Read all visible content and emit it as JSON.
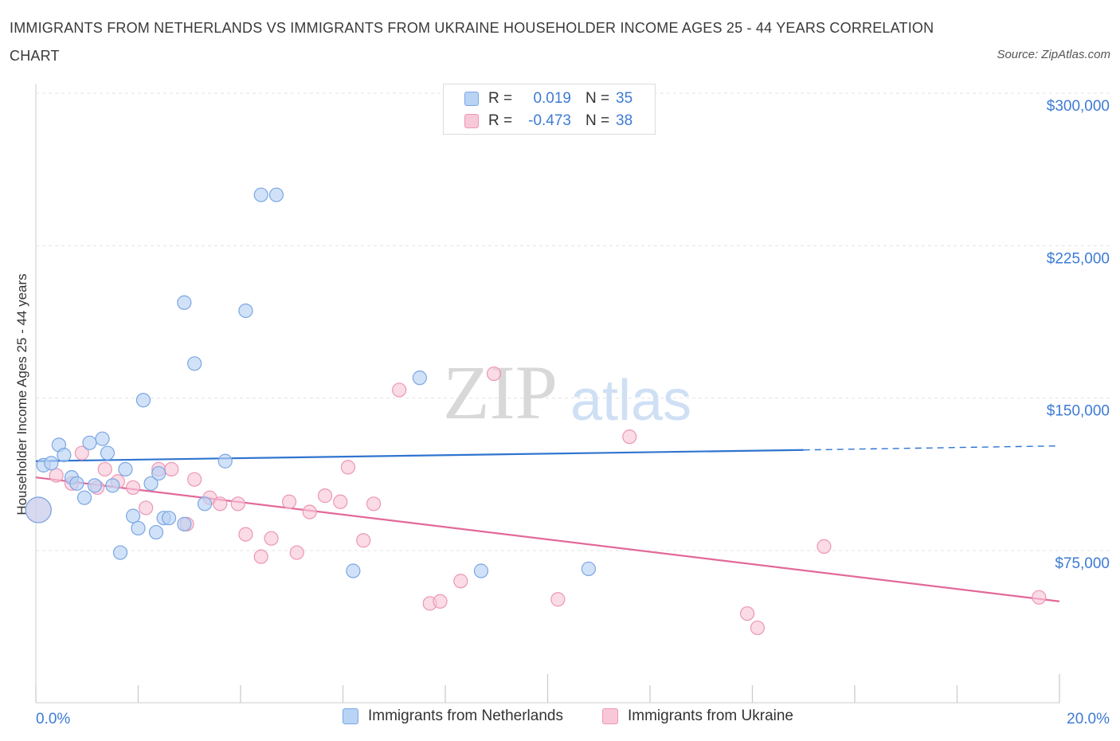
{
  "title": "IMMIGRANTS FROM NETHERLANDS VS IMMIGRANTS FROM UKRAINE HOUSEHOLDER INCOME AGES 25 - 44 YEARS CORRELATION CHART",
  "source": "Source: ZipAtlas.com",
  "watermark": {
    "zip": "ZIP",
    "atlas": "atlas"
  },
  "legend": {
    "rows": [
      {
        "r_label": "R =",
        "r_value": "0.019",
        "n_label": "N =",
        "n_value": "35"
      },
      {
        "r_label": "R =",
        "r_value": "-0.473",
        "n_label": "N =",
        "n_value": "38"
      }
    ]
  },
  "colors": {
    "blue_fill": "#b9d3f5",
    "blue_stroke": "#7aa6e3",
    "blue_line": "#2f74d0",
    "pink_fill": "#f8c8d8",
    "pink_stroke": "#ec97b3",
    "pink_line": "#e2699a",
    "axis_text": "#3d7bd4",
    "grid": "#e3e3e3"
  },
  "chart_data": {
    "type": "scatter",
    "title": "IMMIGRANTS FROM NETHERLANDS VS IMMIGRANTS FROM UKRAINE HOUSEHOLDER INCOME AGES 25 - 44 YEARS CORRELATION CHART",
    "xlabel": "",
    "ylabel": "Householder Income Ages 25 - 44 years",
    "xlim": [
      0,
      20
    ],
    "ylim": [
      0,
      300000
    ],
    "x_tick_labels": [
      "0.0%",
      "20.0%"
    ],
    "y_ticks": [
      75000,
      150000,
      225000,
      300000
    ],
    "y_tick_labels": [
      "$75,000",
      "$150,000",
      "$225,000",
      "$300,000"
    ],
    "grid": true,
    "legend_position": "top-center",
    "series": [
      {
        "name": "Immigrants from Netherlands",
        "color": "blue",
        "points": [
          [
            0.05,
            95000
          ],
          [
            0.15,
            117000
          ],
          [
            0.3,
            118000
          ],
          [
            0.45,
            127000
          ],
          [
            0.55,
            122000
          ],
          [
            0.7,
            111000
          ],
          [
            0.8,
            108000
          ],
          [
            0.95,
            101000
          ],
          [
            1.05,
            128000
          ],
          [
            1.15,
            107000
          ],
          [
            1.3,
            130000
          ],
          [
            1.4,
            123000
          ],
          [
            1.5,
            107000
          ],
          [
            1.65,
            74000
          ],
          [
            1.75,
            115000
          ],
          [
            1.9,
            92000
          ],
          [
            2.0,
            86000
          ],
          [
            2.1,
            149000
          ],
          [
            2.25,
            108000
          ],
          [
            2.35,
            84000
          ],
          [
            2.4,
            113000
          ],
          [
            2.5,
            91000
          ],
          [
            2.6,
            91000
          ],
          [
            2.9,
            88000
          ],
          [
            2.9,
            197000
          ],
          [
            3.1,
            167000
          ],
          [
            3.3,
            98000
          ],
          [
            3.7,
            119000
          ],
          [
            4.1,
            193000
          ],
          [
            4.4,
            250000
          ],
          [
            4.7,
            250000
          ],
          [
            6.2,
            65000
          ],
          [
            7.5,
            160000
          ],
          [
            8.7,
            65000
          ],
          [
            10.8,
            66000
          ]
        ],
        "trend": {
          "x0": 0,
          "y0": 119000,
          "x1": 15,
          "y1": 124500,
          "dashed_to_x": 20,
          "dashed_to_y": 126500
        }
      },
      {
        "name": "Immigrants from Ukraine",
        "color": "pink",
        "points": [
          [
            0.05,
            95000
          ],
          [
            0.4,
            112000
          ],
          [
            0.7,
            108000
          ],
          [
            0.9,
            123000
          ],
          [
            1.2,
            106000
          ],
          [
            1.35,
            115000
          ],
          [
            1.6,
            109000
          ],
          [
            1.9,
            106000
          ],
          [
            2.15,
            96000
          ],
          [
            2.4,
            115000
          ],
          [
            2.65,
            115000
          ],
          [
            2.95,
            88000
          ],
          [
            3.1,
            110000
          ],
          [
            3.4,
            101000
          ],
          [
            3.6,
            98000
          ],
          [
            3.95,
            98000
          ],
          [
            4.1,
            83000
          ],
          [
            4.4,
            72000
          ],
          [
            4.6,
            81000
          ],
          [
            4.95,
            99000
          ],
          [
            5.1,
            74000
          ],
          [
            5.35,
            94000
          ],
          [
            5.65,
            102000
          ],
          [
            5.95,
            99000
          ],
          [
            6.1,
            116000
          ],
          [
            6.4,
            80000
          ],
          [
            6.6,
            98000
          ],
          [
            7.1,
            154000
          ],
          [
            7.7,
            49000
          ],
          [
            7.9,
            50000
          ],
          [
            8.3,
            60000
          ],
          [
            8.95,
            162000
          ],
          [
            10.2,
            51000
          ],
          [
            11.6,
            131000
          ],
          [
            13.9,
            44000
          ],
          [
            14.1,
            37000
          ],
          [
            15.4,
            77000
          ],
          [
            19.6,
            52000
          ]
        ],
        "trend": {
          "x0": 0,
          "y0": 111000,
          "x1": 20,
          "y1": 50000
        }
      }
    ]
  },
  "bottom_legend": {
    "items": [
      {
        "label": "Immigrants from Netherlands"
      },
      {
        "label": "Immigrants from Ukraine"
      }
    ]
  }
}
